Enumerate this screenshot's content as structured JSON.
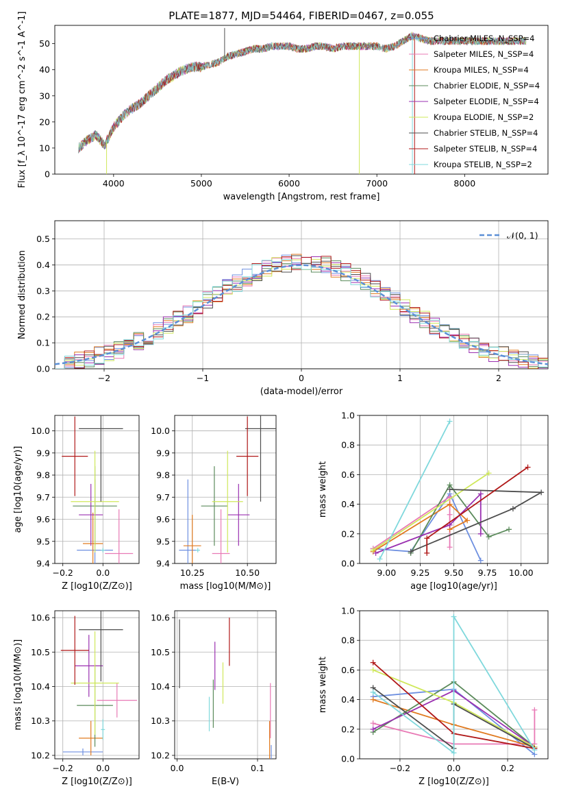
{
  "figure_title": "PLATE=1877, MJD=54464, FIBERID=0467, z=0.055",
  "colors": {
    "Chabrier MILES": "#6d8fe0",
    "Salpeter MILES": "#e879b5",
    "Kroupa MILES": "#e07a1f",
    "Chabrier ELODIE": "#5a8a5a",
    "Salpeter ELODIE": "#9a2fb0",
    "Kroupa ELODIE": "#cfe85a",
    "Chabrier STELIB": "#4d4d4d",
    "Salpeter STELIB": "#b01818",
    "Kroupa STELIB": "#7fd8dc"
  },
  "chart_data": [
    {
      "id": "spectrum",
      "type": "line",
      "title": "PLATE=1877, MJD=54464, FIBERID=0467, z=0.055",
      "xlabel": "wavelength [Angstrom, rest frame]",
      "ylabel": "Flux [f_λ 10^-17 erg cm^-2 s^-1 A^-1]",
      "xlim": [
        3330,
        8950
      ],
      "ylim": [
        0,
        57
      ],
      "xticks": [
        4000,
        5000,
        6000,
        7000,
        8000
      ],
      "yticks": [
        0,
        10,
        20,
        30,
        40,
        50
      ],
      "grid": false,
      "legend_position": "top-right",
      "legend": [
        "Chabrier MILES, N_SSP=4",
        "Salpeter MILES, N_SSP=4",
        "Kroupa MILES, N_SSP=4",
        "Chabrier ELODIE, N_SSP=4",
        "Salpeter ELODIE, N_SSP=4",
        "Kroupa ELODIE, N_SSP=2",
        "Chabrier STELIB, N_SSP=4",
        "Salpeter STELIB, N_SSP=4",
        "Kroupa STELIB, N_SSP=2"
      ],
      "continuum": [
        [
          3600,
          10
        ],
        [
          3700,
          13
        ],
        [
          3800,
          15
        ],
        [
          3900,
          11
        ],
        [
          4000,
          18
        ],
        [
          4100,
          22
        ],
        [
          4200,
          25
        ],
        [
          4300,
          27
        ],
        [
          4400,
          30
        ],
        [
          4500,
          33
        ],
        [
          4600,
          36
        ],
        [
          4700,
          38
        ],
        [
          4800,
          40
        ],
        [
          4900,
          41
        ],
        [
          5000,
          41
        ],
        [
          5100,
          42
        ],
        [
          5200,
          43
        ],
        [
          5300,
          45
        ],
        [
          5400,
          46
        ],
        [
          5500,
          47
        ],
        [
          5600,
          48
        ],
        [
          5700,
          48
        ],
        [
          5800,
          49
        ],
        [
          5900,
          49
        ],
        [
          6000,
          49
        ],
        [
          6100,
          48
        ],
        [
          6200,
          48
        ],
        [
          6300,
          49
        ],
        [
          6400,
          49
        ],
        [
          6500,
          48
        ],
        [
          6600,
          49
        ],
        [
          6700,
          49
        ],
        [
          6800,
          49
        ],
        [
          6900,
          49
        ],
        [
          7000,
          49
        ],
        [
          7100,
          48
        ],
        [
          7200,
          49
        ],
        [
          7300,
          51
        ],
        [
          7400,
          53
        ],
        [
          7500,
          52
        ],
        [
          7600,
          51
        ],
        [
          7700,
          51
        ],
        [
          7800,
          51
        ],
        [
          7900,
          51
        ],
        [
          8000,
          51
        ],
        [
          8100,
          51
        ],
        [
          8200,
          51
        ],
        [
          8300,
          51
        ],
        [
          8400,
          51
        ],
        [
          8500,
          51
        ],
        [
          8600,
          51
        ],
        [
          8700,
          51
        ]
      ],
      "spikes": [
        [
          3920,
          0
        ],
        [
          5265,
          56
        ],
        [
          6800,
          0
        ],
        [
          7430,
          0
        ],
        [
          7405,
          0
        ]
      ]
    },
    {
      "id": "residuals",
      "type": "step",
      "xlabel": "(data-model)/error",
      "ylabel": "Normed distribution",
      "xlim": [
        -2.5,
        2.5
      ],
      "ylim": [
        0,
        0.57
      ],
      "xticks": [
        -2,
        -1,
        0,
        1,
        2
      ],
      "yticks": [
        0.0,
        0.1,
        0.2,
        0.3,
        0.4,
        0.5
      ],
      "grid": true,
      "legend": [
        "𝒩(0, 1)"
      ],
      "legend_position": "top-right",
      "bin_width": 0.1
    },
    {
      "id": "age_vs_Z",
      "type": "errorbar",
      "xlabel": "Z [log10(Z/Z⊙)]",
      "ylabel": "age  [log10(age/yr)]",
      "xlim": [
        -0.24,
        0.18
      ],
      "ylim": [
        9.4,
        10.07
      ],
      "xticks": [
        -0.2,
        0.0
      ],
      "yticks": [
        9.4,
        9.5,
        9.6,
        9.7,
        9.8,
        9.9,
        10.0
      ],
      "grid": true,
      "points": [
        {
          "model": "Chabrier MILES",
          "x": -0.04,
          "y": 9.46,
          "xerr": 0.09,
          "yerr": 0.32
        },
        {
          "model": "Salpeter MILES",
          "x": 0.08,
          "y": 9.445,
          "xerr": 0.07,
          "yerr": 0.2
        },
        {
          "model": "Kroupa MILES",
          "x": -0.05,
          "y": 9.49,
          "xerr": 0.05,
          "yerr": 0.14
        },
        {
          "model": "Chabrier ELODIE",
          "x": -0.04,
          "y": 9.66,
          "xerr": 0.11,
          "yerr": 0.18
        },
        {
          "model": "Salpeter ELODIE",
          "x": -0.06,
          "y": 9.62,
          "xerr": 0.06,
          "yerr": 0.14
        },
        {
          "model": "Kroupa ELODIE",
          "x": -0.04,
          "y": 9.68,
          "xerr": 0.12,
          "yerr": 0.23
        },
        {
          "model": "Chabrier STELIB",
          "x": -0.01,
          "y": 10.01,
          "xerr": 0.11,
          "yerr": 0.33
        },
        {
          "model": "Salpeter STELIB",
          "x": -0.14,
          "y": 9.885,
          "xerr": 0.065,
          "yerr": 0.18
        },
        {
          "model": "Kroupa STELIB",
          "x": 0.0,
          "y": 9.46,
          "xerr": 0.01,
          "yerr": 0.01
        }
      ]
    },
    {
      "id": "age_vs_mass",
      "type": "errorbar",
      "xlabel": "mass [log10(M/M⊙)]",
      "ylabel": "",
      "xlim": [
        10.17,
        10.63
      ],
      "ylim": [
        9.4,
        10.07
      ],
      "xticks": [
        10.25,
        10.5
      ],
      "yticks": [
        9.4,
        9.5,
        9.6,
        9.7,
        9.8,
        9.9,
        10.0
      ],
      "grid": true,
      "points": [
        {
          "model": "Chabrier MILES",
          "x": 10.23,
          "y": 9.46,
          "xerr": 0.04,
          "yerr": 0.32
        },
        {
          "model": "Salpeter MILES",
          "x": 10.38,
          "y": 9.445,
          "xerr": 0.04,
          "yerr": 0.2
        },
        {
          "model": "Kroupa MILES",
          "x": 10.25,
          "y": 9.48,
          "xerr": 0.04,
          "yerr": 0.14
        },
        {
          "model": "Chabrier ELODIE",
          "x": 10.35,
          "y": 9.66,
          "xerr": 0.06,
          "yerr": 0.18
        },
        {
          "model": "Salpeter ELODIE",
          "x": 10.46,
          "y": 9.62,
          "xerr": 0.05,
          "yerr": 0.14
        },
        {
          "model": "Kroupa ELODIE",
          "x": 10.41,
          "y": 9.68,
          "xerr": 0.07,
          "yerr": 0.23
        },
        {
          "model": "Chabrier STELIB",
          "x": 10.56,
          "y": 10.01,
          "xerr": 0.07,
          "yerr": 0.33
        },
        {
          "model": "Salpeter STELIB",
          "x": 10.5,
          "y": 9.885,
          "xerr": 0.05,
          "yerr": 0.18
        },
        {
          "model": "Kroupa STELIB",
          "x": 10.275,
          "y": 9.46,
          "xerr": 0.01,
          "yerr": 0.01
        }
      ]
    },
    {
      "id": "weight_vs_age",
      "type": "line",
      "xlabel": "age  [log10(age/yr)]",
      "ylabel": "mass weight",
      "xlim": [
        8.8,
        10.2
      ],
      "ylim": [
        0.0,
        1.0
      ],
      "xticks": [
        9.0,
        9.25,
        9.5,
        9.75,
        10.0
      ],
      "yticks": [
        0.0,
        0.2,
        0.4,
        0.6,
        0.8,
        1.0
      ],
      "grid": true,
      "series": [
        {
          "model": "Chabrier MILES",
          "x": [
            8.9,
            9.18,
            9.47,
            9.7
          ],
          "y": [
            0.1,
            0.08,
            0.47,
            0.02
          ]
        },
        {
          "model": "Salpeter MILES",
          "x": [
            8.9,
            9.47,
            9.47,
            9.47
          ],
          "y": [
            0.1,
            0.45,
            0.33,
            0.11
          ]
        },
        {
          "model": "Kroupa MILES",
          "x": [
            8.9,
            9.47,
            9.6,
            9.47
          ],
          "y": [
            0.08,
            0.4,
            0.29,
            0.23
          ]
        },
        {
          "model": "Chabrier ELODIE",
          "x": [
            9.18,
            9.47,
            9.76,
            9.91
          ],
          "y": [
            0.07,
            0.53,
            0.18,
            0.23
          ]
        },
        {
          "model": "Salpeter ELODIE",
          "x": [
            8.92,
            9.47,
            9.7,
            9.7
          ],
          "y": [
            0.07,
            0.26,
            0.47,
            0.2
          ]
        },
        {
          "model": "Kroupa ELODIE",
          "x": [
            8.9,
            9.76
          ],
          "y": [
            0.09,
            0.61
          ]
        },
        {
          "model": "Chabrier STELIB",
          "x": [
            9.18,
            9.94,
            10.15,
            9.47
          ],
          "y": [
            0.08,
            0.37,
            0.48,
            0.5
          ]
        },
        {
          "model": "Salpeter STELIB",
          "x": [
            9.3,
            9.3,
            10.05
          ],
          "y": [
            0.07,
            0.17,
            0.65
          ]
        },
        {
          "model": "Kroupa STELIB",
          "x": [
            8.95,
            9.47
          ],
          "y": [
            0.03,
            0.96
          ]
        }
      ]
    },
    {
      "id": "mass_vs_Z",
      "type": "errorbar",
      "xlabel": "Z [log10(Z/Z⊙)]",
      "ylabel": "mass [log10(M/M⊙)]",
      "xlim": [
        -0.24,
        0.18
      ],
      "ylim": [
        10.19,
        10.62
      ],
      "xticks": [
        -0.2,
        0.0
      ],
      "yticks": [
        10.2,
        10.3,
        10.4,
        10.5,
        10.6
      ],
      "grid": true,
      "points": [
        {
          "model": "Chabrier MILES",
          "x": -0.1,
          "y": 10.21,
          "xerr": 0.1,
          "yerr": 0.01
        },
        {
          "model": "Salpeter MILES",
          "x": 0.07,
          "y": 10.36,
          "xerr": 0.1,
          "yerr": 0.05
        },
        {
          "model": "Kroupa MILES",
          "x": -0.06,
          "y": 10.25,
          "xerr": 0.06,
          "yerr": 0.05
        },
        {
          "model": "Chabrier ELODIE",
          "x": -0.04,
          "y": 10.345,
          "xerr": 0.09,
          "yerr": 0.12
        },
        {
          "model": "Salpeter ELODIE",
          "x": -0.07,
          "y": 10.46,
          "xerr": 0.07,
          "yerr": 0.09
        },
        {
          "model": "Kroupa ELODIE",
          "x": -0.04,
          "y": 10.41,
          "xerr": 0.12,
          "yerr": 0.15
        },
        {
          "model": "Chabrier STELIB",
          "x": -0.01,
          "y": 10.565,
          "xerr": 0.11,
          "yerr": 0.15
        },
        {
          "model": "Salpeter STELIB",
          "x": -0.14,
          "y": 10.505,
          "xerr": 0.07,
          "yerr": 0.1
        },
        {
          "model": "Kroupa STELIB",
          "x": 0.0,
          "y": 10.275,
          "xerr": 0.01,
          "yerr": 0.03
        }
      ]
    },
    {
      "id": "mass_vs_ebv",
      "type": "errorbar",
      "xlabel": "E(B-V)",
      "ylabel": "",
      "xlim": [
        -0.003,
        0.123
      ],
      "ylim": [
        10.19,
        10.62
      ],
      "xticks": [
        0.0,
        0.1
      ],
      "yticks": [
        10.2,
        10.3,
        10.4,
        10.5,
        10.6
      ],
      "grid": true,
      "points": [
        {
          "model": "Chabrier MILES",
          "x": 0.117,
          "y": 10.21,
          "yerr": 0.02
        },
        {
          "model": "Salpeter MILES",
          "x": 0.116,
          "y": 10.33,
          "yerr": 0.08
        },
        {
          "model": "Kroupa MILES",
          "x": 0.115,
          "y": 10.24,
          "yerr": 0.06
        },
        {
          "model": "Chabrier ELODIE",
          "x": 0.045,
          "y": 10.35,
          "yerr": 0.07
        },
        {
          "model": "Salpeter ELODIE",
          "x": 0.047,
          "y": 10.46,
          "yerr": 0.07
        },
        {
          "model": "Kroupa ELODIE",
          "x": 0.057,
          "y": 10.41,
          "yerr": 0.06
        },
        {
          "model": "Chabrier STELIB",
          "x": 0.003,
          "y": 10.495,
          "yerr": 0.1
        },
        {
          "model": "Salpeter STELIB",
          "x": 0.065,
          "y": 10.53,
          "yerr": 0.07
        },
        {
          "model": "Kroupa STELIB",
          "x": 0.04,
          "y": 10.32,
          "yerr": 0.05
        }
      ]
    },
    {
      "id": "weight_vs_Z",
      "type": "line",
      "xlabel": "Z [log10(Z/Z⊙)]",
      "ylabel": "mass weight",
      "xlim": [
        -0.35,
        0.35
      ],
      "ylim": [
        0.0,
        1.0
      ],
      "xticks": [
        -0.2,
        0.0,
        0.2
      ],
      "yticks": [
        0.0,
        0.2,
        0.4,
        0.6,
        0.8,
        1.0
      ],
      "grid": true,
      "series": [
        {
          "model": "Chabrier MILES",
          "x": [
            -0.3,
            0.0,
            0.3
          ],
          "y": [
            0.42,
            0.47,
            0.03
          ]
        },
        {
          "model": "Salpeter MILES",
          "x": [
            -0.3,
            0.0,
            0.3,
            0.3
          ],
          "y": [
            0.24,
            0.1,
            0.1,
            0.33
          ]
        },
        {
          "model": "Kroupa MILES",
          "x": [
            -0.3,
            0.0,
            0.3
          ],
          "y": [
            0.4,
            0.23,
            0.08
          ]
        },
        {
          "model": "Chabrier ELODIE",
          "x": [
            -0.3,
            0.0,
            0.3
          ],
          "y": [
            0.18,
            0.52,
            0.08
          ]
        },
        {
          "model": "Salpeter ELODIE",
          "x": [
            -0.3,
            0.0,
            0.3
          ],
          "y": [
            0.2,
            0.46,
            0.08
          ]
        },
        {
          "model": "Kroupa ELODIE",
          "x": [
            -0.3,
            0.0,
            0.3
          ],
          "y": [
            0.6,
            0.38,
            0.08
          ]
        },
        {
          "model": "Chabrier STELIB",
          "x": [
            -0.3,
            0.0,
            0.0,
            0.3
          ],
          "y": [
            0.48,
            0.07,
            0.37,
            0.07
          ]
        },
        {
          "model": "Salpeter STELIB",
          "x": [
            -0.3,
            0.0,
            0.3
          ],
          "y": [
            0.65,
            0.17,
            0.07
          ]
        },
        {
          "model": "Kroupa STELIB",
          "x": [
            -0.3,
            0.0,
            0.0,
            0.3
          ],
          "y": [
            0.45,
            0.04,
            0.96,
            0.06
          ]
        }
      ]
    }
  ]
}
